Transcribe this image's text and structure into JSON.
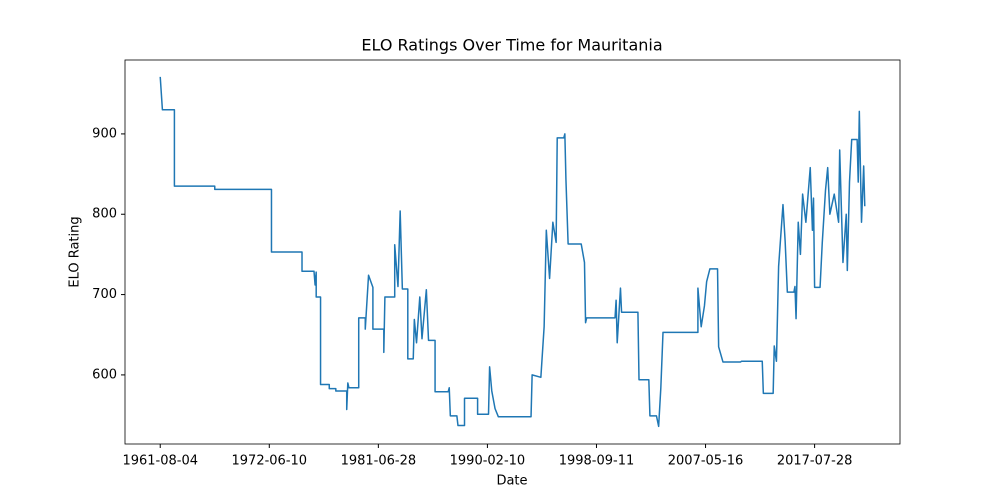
{
  "chart_data": {
    "type": "line",
    "title": "ELO Ratings Over Time for Mauritania",
    "x_label": "Date",
    "y_label": "ELO Rating",
    "series": [
      {
        "name": "Mauritania",
        "color": "#1f77b4",
        "x": [
          0,
          2,
          13,
          13,
          50,
          50,
          102,
          102,
          130,
          130,
          141,
          142,
          143,
          143,
          147,
          147,
          155,
          155,
          161,
          161,
          171,
          171,
          172,
          173,
          182,
          182,
          188,
          188,
          191,
          195,
          195,
          205,
          205,
          206,
          215,
          215,
          218,
          220,
          222,
          227,
          227,
          232,
          233,
          235,
          238,
          240,
          244,
          246,
          252,
          252,
          264,
          265,
          266,
          272,
          273,
          279,
          279,
          291,
          291,
          301,
          302,
          304,
          307,
          310,
          340,
          341,
          349,
          352,
          354,
          357,
          360,
          363,
          364,
          370,
          371,
          372,
          374,
          386,
          389,
          390,
          391,
          417,
          418,
          419,
          422,
          423,
          438,
          439,
          448,
          449,
          455,
          457,
          459,
          461,
          493,
          493,
          496,
          499,
          501,
          504,
          511,
          512,
          516,
          532,
          533,
          552,
          553,
          562,
          563,
          565,
          567,
          571,
          573,
          575,
          581,
          582,
          583,
          585,
          587,
          589,
          592,
          596,
          598,
          599,
          600,
          605,
          607,
          610,
          612,
          614,
          618,
          622,
          623,
          626,
          629,
          630,
          632,
          634,
          639,
          640,
          641,
          643,
          645,
          646
        ],
        "values": [
          971,
          930,
          930,
          835,
          835,
          831,
          831,
          753,
          753,
          729,
          729,
          712,
          728,
          697,
          697,
          588,
          588,
          583,
          583,
          580,
          580,
          557,
          590,
          584,
          584,
          671,
          671,
          657,
          724,
          709,
          657,
          657,
          628,
          697,
          697,
          762,
          710,
          804,
          707,
          707,
          620,
          620,
          669,
          640,
          697,
          645,
          706,
          643,
          643,
          579,
          579,
          584,
          549,
          549,
          537,
          537,
          571,
          571,
          551,
          551,
          610,
          580,
          558,
          548,
          548,
          600,
          597,
          660,
          780,
          720,
          790,
          765,
          895,
          895,
          900,
          843,
          763,
          763,
          740,
          665,
          671,
          671,
          693,
          640,
          708,
          678,
          678,
          594,
          594,
          549,
          549,
          536,
          584,
          653,
          653,
          708,
          660,
          686,
          716,
          732,
          732,
          635,
          616,
          616,
          617,
          617,
          577,
          577,
          636,
          617,
          735,
          812,
          766,
          703,
          703,
          710,
          670,
          790,
          750,
          825,
          790,
          858,
          780,
          820,
          709,
          709,
          764,
          830,
          858,
          800,
          825,
          790,
          880,
          740,
          800,
          730,
          840,
          893,
          893,
          840,
          928,
          790,
          860,
          810
        ]
      }
    ],
    "xlim": [
      -32.3,
      678.3
    ],
    "ylim": [
      514,
      992
    ],
    "xticks": [
      {
        "value": 0,
        "label": "1961-08-04"
      },
      {
        "value": 100,
        "label": "1972-06-10"
      },
      {
        "value": 200,
        "label": "1981-06-28"
      },
      {
        "value": 300,
        "label": "1990-02-10"
      },
      {
        "value": 400,
        "label": "1998-09-11"
      },
      {
        "value": 500,
        "label": "2007-05-16"
      },
      {
        "value": 600,
        "label": "2017-07-28"
      }
    ],
    "yticks": [
      600,
      700,
      800,
      900
    ]
  }
}
